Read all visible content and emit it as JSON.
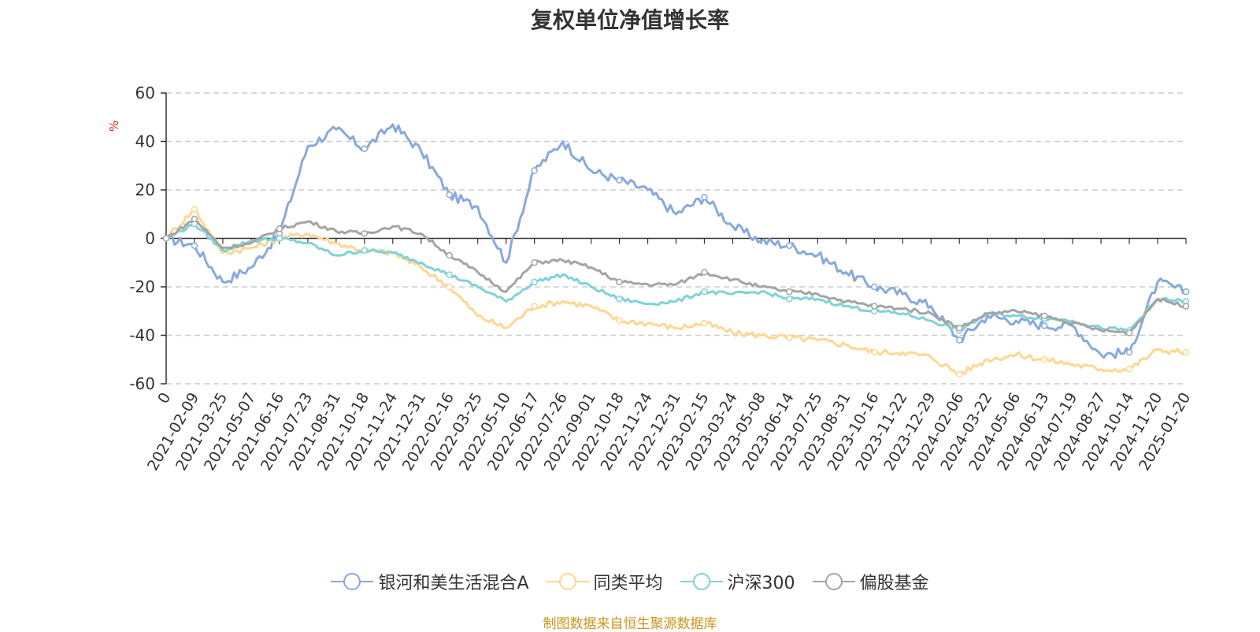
{
  "chart_data": {
    "type": "line",
    "title": "复权单位净值增长率",
    "ylabel": "%",
    "ylim": [
      -60,
      60
    ],
    "yticks": [
      60,
      40,
      20,
      0,
      -20,
      -40,
      -60
    ],
    "x_first_label": "0",
    "x": [
      "2021-02-09",
      "2021-03-25",
      "2021-05-07",
      "2021-06-16",
      "2021-07-23",
      "2021-08-31",
      "2021-10-18",
      "2021-11-24",
      "2021-12-31",
      "2022-02-16",
      "2022-03-25",
      "2022-05-10",
      "2022-06-17",
      "2022-07-26",
      "2022-09-01",
      "2022-10-18",
      "2022-11-24",
      "2022-12-31",
      "2023-02-15",
      "2023-03-24",
      "2023-05-08",
      "2023-06-14",
      "2023-07-25",
      "2023-08-31",
      "2023-10-16",
      "2023-11-22",
      "2023-12-29",
      "2024-02-06",
      "2024-03-22",
      "2024-05-06",
      "2024-06-13",
      "2024-07-19",
      "2024-08-27",
      "2024-10-14",
      "2024-11-20",
      "2025-01-20"
    ],
    "grid": true,
    "legend_position": "bottom",
    "series": [
      {
        "name": "银河和美生活混合A",
        "color": "#88a9dc",
        "values": [
          -3,
          -18,
          -12,
          2,
          38,
          45,
          37,
          47,
          36,
          18,
          13,
          -10,
          28,
          40,
          28,
          24,
          20,
          10,
          17,
          5,
          -1,
          -3,
          -7,
          -14,
          -20,
          -23,
          -28,
          -42,
          -32,
          -34,
          -36,
          -36,
          -48,
          -47,
          -18,
          -22
        ]
      },
      {
        "name": "同类平均",
        "color": "#fdd792",
        "values": [
          12,
          -6,
          -4,
          0,
          2,
          -2,
          -5,
          -6,
          -12,
          -20,
          -32,
          -37,
          -28,
          -26,
          -28,
          -34,
          -35,
          -37,
          -35,
          -39,
          -40,
          -41,
          -42,
          -44,
          -47,
          -47,
          -49,
          -56,
          -50,
          -48,
          -50,
          -52,
          -54,
          -54,
          -46,
          -47
        ]
      },
      {
        "name": "沪深300",
        "color": "#7fd2d7",
        "values": [
          6,
          -5,
          -1,
          0,
          -2,
          -7,
          -5,
          -6,
          -10,
          -15,
          -20,
          -26,
          -18,
          -15,
          -20,
          -25,
          -27,
          -26,
          -22,
          -23,
          -22,
          -25,
          -25,
          -28,
          -30,
          -31,
          -34,
          -38,
          -31,
          -32,
          -33,
          -34,
          -37,
          -38,
          -25,
          -26
        ]
      },
      {
        "name": "偏股基金",
        "color": "#a4a4a4",
        "values": [
          8,
          -4,
          -2,
          4,
          7,
          3,
          2,
          5,
          2,
          -7,
          -14,
          -22,
          -10,
          -9,
          -12,
          -18,
          -19,
          -19,
          -14,
          -17,
          -20,
          -22,
          -23,
          -26,
          -28,
          -29,
          -31,
          -37,
          -31,
          -30,
          -32,
          -35,
          -38,
          -39,
          -25,
          -28
        ]
      }
    ]
  },
  "source_note": "制图数据来自恒生聚源数据库"
}
